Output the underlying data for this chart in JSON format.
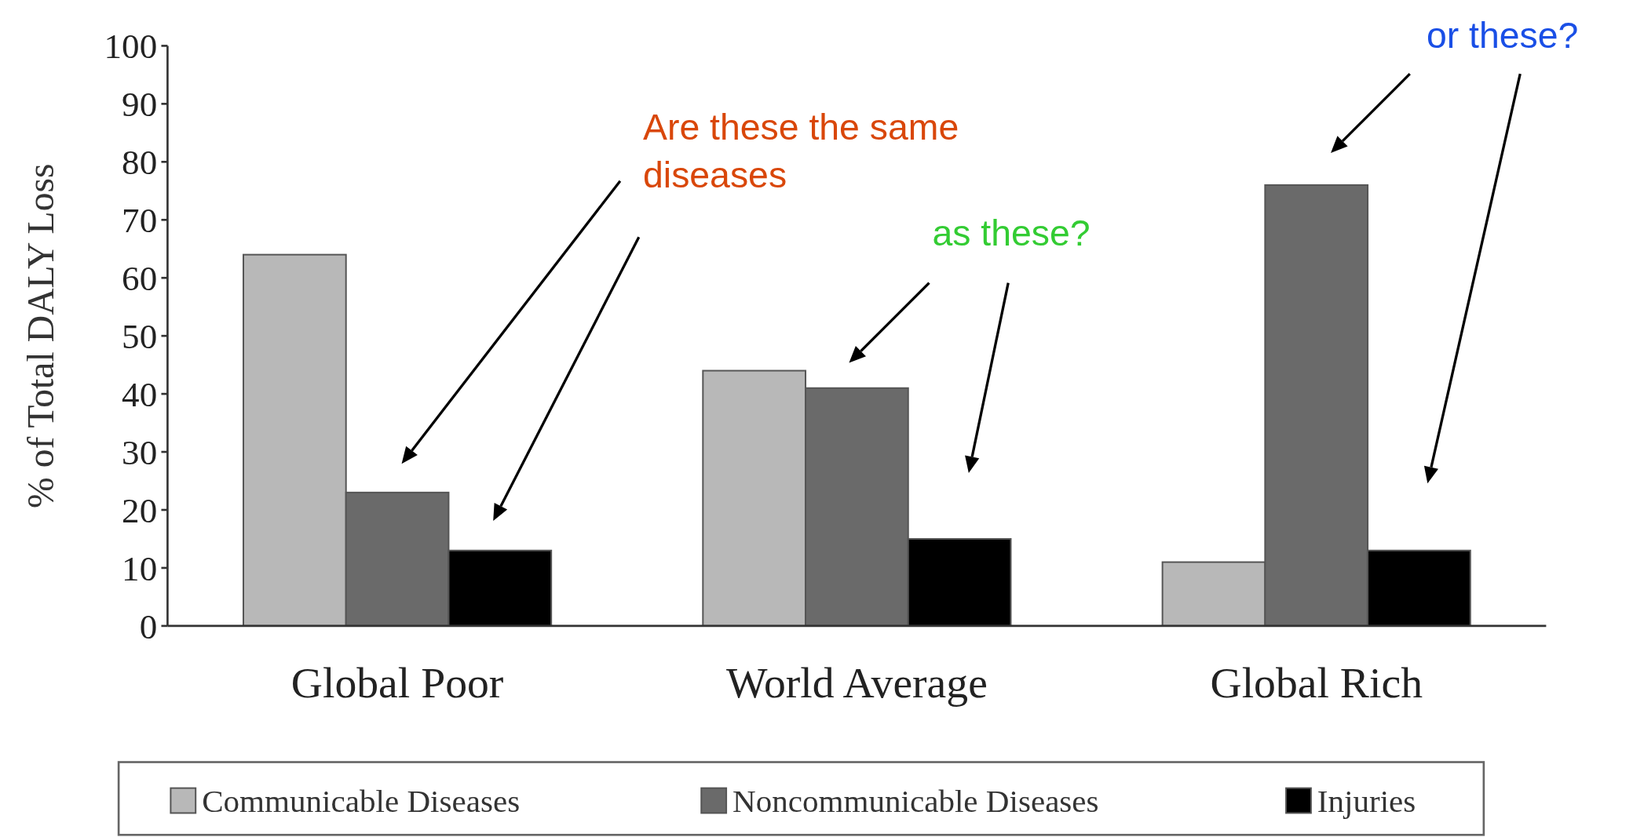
{
  "chart_data": {
    "type": "bar",
    "ylabel": "% of Total DALY Loss",
    "categories": [
      "Global Poor",
      "World Average",
      "Global Rich"
    ],
    "series": [
      {
        "name": "Communicable Diseases",
        "color": "#b8b8b8",
        "values": [
          64,
          44,
          11
        ]
      },
      {
        "name": "Noncommunicable Diseases",
        "color": "#6a6a6a",
        "values": [
          23,
          41,
          76
        ]
      },
      {
        "name": "Injuries",
        "color": "#000000",
        "values": [
          13,
          15,
          13
        ]
      }
    ],
    "ylim": [
      0,
      100
    ],
    "yticks": [
      0,
      10,
      20,
      30,
      40,
      50,
      60,
      70,
      80,
      90,
      100
    ],
    "grid": false,
    "legend": "bottom",
    "annotations": [
      "Are these the same diseases",
      "as these?",
      "or these?"
    ]
  }
}
